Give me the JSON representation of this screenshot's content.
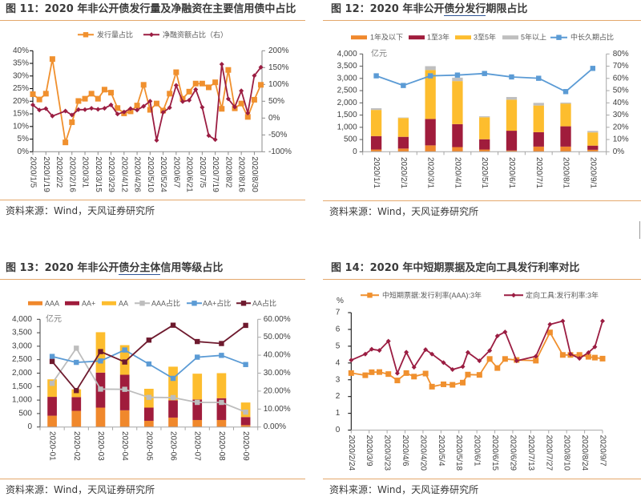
{
  "chart_data": [
    {
      "type": "line",
      "title": "图 11：2020 年非公开债发行量及净融资在主要信用债中占比",
      "title_parts": [
        "图 11：2020 年非公开债发行量及净融资在主要信用债中占比"
      ],
      "source": "资料来源：Wind，天风证券研究所",
      "legend_position": "top",
      "grid": false,
      "x": [
        "2020/1/5",
        "2020/1/12",
        "2020/1/19",
        "2020/1/26",
        "2020/2/2",
        "2020/2/9",
        "2020/2/16",
        "2020/2/23",
        "2020/3/1",
        "2020/3/8",
        "2020/3/15",
        "2020/3/22",
        "2020/3/29",
        "2020/4/5",
        "2020/4/12",
        "2020/4/19",
        "2020/4/26",
        "2020/5/3",
        "2020/5/10",
        "2020/5/17",
        "2020/5/24",
        "2020/5/31",
        "2020/6/7",
        "2020/6/14",
        "2020/6/21",
        "2020/6/28",
        "2020/7/5",
        "2020/7/12",
        "2020/7/19",
        "2020/7/26",
        "2020/8/2",
        "2020/8/9",
        "2020/8/16",
        "2020/8/23",
        "2020/8/30",
        "2020/9/6"
      ],
      "x_tick_labels": [
        "2020/1/5",
        "2020/1/19",
        "2020/2/2",
        "2020/2/16",
        "2020/3/1",
        "2020/3/15",
        "2020/3/29",
        "2020/4/12",
        "2020/4/26",
        "2020/5/10",
        "2020/5/24",
        "2020/6/7",
        "2020/6/21",
        "2020/7/5",
        "2020/7/19",
        "2020/8/2",
        "2020/8/16",
        "2020/8/30"
      ],
      "y_left": {
        "min": 0,
        "max": 40,
        "step": 5,
        "tick_labels": [
          "0%",
          "5%",
          "10%",
          "15%",
          "20%",
          "25%",
          "30%",
          "35%",
          "40%"
        ]
      },
      "y_right": {
        "min": -100,
        "max": 200,
        "step": 50,
        "tick_labels": [
          "-100%",
          "-50%",
          "0%",
          "50%",
          "100%",
          "150%",
          "200%"
        ]
      },
      "series": [
        {
          "name": "发行量占比",
          "type": "line",
          "axis": "left",
          "unit": "%",
          "color": "#F0902E",
          "marker": "square",
          "values": [
            22.8,
            20.7,
            23.0,
            36.7,
            null,
            3.7,
            11.7,
            20.1,
            21.0,
            23.0,
            21.0,
            24.6,
            23.4,
            17.3,
            15.2,
            16.0,
            18.3,
            26.5,
            16.6,
            19.1,
            16.3,
            23.0,
            31.5,
            21.0,
            23.8,
            27.0,
            27.0,
            25.5,
            27.5,
            17.0,
            32.4,
            17.2,
            19.1,
            13.8,
            20.6,
            26.5
          ]
        },
        {
          "name": "净融资额占比（右）",
          "type": "line",
          "axis": "right",
          "unit": "%",
          "color": "#9B1D42",
          "marker": "diamond",
          "values": [
            39,
            24,
            28,
            6,
            null,
            21,
            9,
            25,
            25,
            29,
            26,
            29,
            39,
            12,
            18,
            28,
            24,
            35,
            50,
            -66,
            17,
            31,
            97,
            49,
            53,
            85,
            32,
            -52,
            -64,
            160,
            57,
            33,
            81,
            15,
            126,
            151
          ]
        }
      ]
    },
    {
      "type": "bar",
      "stacked": true,
      "title": "图 12：2020 年非公开债分发行期限占比",
      "title_parts": [
        "图 12：2020 年非公开",
        "债分发行",
        "期限占比"
      ],
      "source": "资料来源：Wind，天风证券研究所",
      "legend_position": "top",
      "grid": false,
      "unit_label": "亿元",
      "categories": [
        "2020/1/1",
        "2020/2/1",
        "2020/3/1",
        "2020/4/1",
        "2020/5/1",
        "2020/6/1",
        "2020/7/1",
        "2020/8/1",
        "2020/9/1"
      ],
      "y_left": {
        "min": 0,
        "max": 4000,
        "step": 500,
        "tick_labels": [
          "0",
          "500",
          "1,000",
          "1,500",
          "2,000",
          "2,500",
          "3,000",
          "3,500",
          "4,000"
        ]
      },
      "y_right": {
        "min": 0,
        "max": 80,
        "step": 10,
        "tick_labels": [
          "0%",
          "10%",
          "20%",
          "30%",
          "40%",
          "50%",
          "60%",
          "70%",
          "80%"
        ]
      },
      "series": [
        {
          "name": "1年及以下",
          "type": "bar",
          "axis": "left",
          "color": "#F0882C",
          "values": [
            90,
            130,
            260,
            190,
            90,
            50,
            210,
            210,
            80
          ]
        },
        {
          "name": "1至3年",
          "type": "bar",
          "axis": "left",
          "color": "#A01C3C",
          "values": [
            550,
            480,
            1080,
            940,
            420,
            810,
            590,
            830,
            170
          ]
        },
        {
          "name": "3至5年",
          "type": "bar",
          "axis": "left",
          "color": "#FDBD2E",
          "values": [
            1070,
            770,
            2000,
            1760,
            900,
            1270,
            1090,
            930,
            540
          ]
        },
        {
          "name": "5年以上",
          "type": "bar",
          "axis": "left",
          "color": "#BFBFBF",
          "values": [
            70,
            20,
            160,
            140,
            40,
            110,
            110,
            40,
            60
          ]
        },
        {
          "name": "中长久期占比",
          "type": "line",
          "axis": "right",
          "unit": "%",
          "color": "#5B9BD5",
          "marker": "square",
          "values": [
            62.1,
            54.2,
            62.1,
            62.7,
            64.0,
            61.2,
            60.1,
            49.2,
            68.2
          ]
        }
      ]
    },
    {
      "type": "bar",
      "stacked": true,
      "title": "图 13：2020 年非公开债分主体信用等级占比",
      "title_parts": [
        "图 13：2020 年非公开",
        "债分主体",
        "信用等级占比"
      ],
      "source": "资料来源：Wind，天风证券研究所",
      "legend_position": "top",
      "grid": false,
      "unit_label": "亿元",
      "categories": [
        "2020-01",
        "2020-02",
        "2020-03",
        "2020-04",
        "2020-05",
        "2020-06",
        "2020-07",
        "2020-08",
        "2020-09"
      ],
      "y_left": {
        "min": 0,
        "max": 4000,
        "step": 500,
        "tick_labels": [
          "0",
          "500",
          "1,000",
          "1,500",
          "2,000",
          "2,500",
          "3,000",
          "3,500",
          "4,000"
        ]
      },
      "y_right": {
        "min": 0,
        "max": 60,
        "step": 10,
        "tick_labels": [
          "0.00%",
          "10.00%",
          "20.00%",
          "30.00%",
          "40.00%",
          "50.00%",
          "60.00%"
        ]
      },
      "series": [
        {
          "name": "AAA",
          "type": "bar",
          "axis": "left",
          "color": "#F0882C",
          "values": [
            420,
            600,
            720,
            620,
            230,
            350,
            260,
            260,
            70
          ]
        },
        {
          "name": "AA+",
          "type": "bar",
          "axis": "left",
          "color": "#A01C3C",
          "values": [
            700,
            510,
            1300,
            1320,
            490,
            640,
            760,
            810,
            300
          ]
        },
        {
          "name": "AA",
          "type": "bar",
          "axis": "left",
          "color": "#FDBD2E",
          "values": [
            650,
            290,
            1500,
            1100,
            700,
            1250,
            960,
            930,
            540
          ]
        },
        {
          "name": "AAA占比",
          "type": "line",
          "axis": "right",
          "unit": "%",
          "color": "#BDBDBD",
          "marker": "square",
          "values": [
            24.3,
            43.9,
            21.1,
            21.0,
            16.5,
            16.4,
            13.7,
            13.7,
            8.3
          ]
        },
        {
          "name": "AA+占比",
          "type": "line",
          "axis": "right",
          "unit": "%",
          "color": "#5B9BD5",
          "marker": "square",
          "values": [
            39.3,
            36.0,
            36.8,
            42.9,
            35.1,
            27.1,
            38.9,
            39.9,
            34.8
          ]
        },
        {
          "name": "AA占比",
          "type": "line",
          "axis": "right",
          "unit": "%",
          "color": "#6E1A2E",
          "marker": "square",
          "values": [
            36.5,
            20.3,
            42.0,
            36.2,
            48.4,
            56.7,
            47.6,
            46.5,
            56.6
          ]
        }
      ]
    },
    {
      "type": "line",
      "title": "图 14：2020 年中短期票据及定向工具发行利率对比",
      "title_parts": [
        "图 14：2020 年中短期票据及定向工具发行利率对比"
      ],
      "source": "资料来源：Wind，天风证券研究所",
      "legend_position": "top",
      "grid": false,
      "unit_label": "%",
      "x_range": [
        "2020/2/24",
        "2020/9/7"
      ],
      "x": [
        "2020/2/24",
        "2020/3/6",
        "2020/3/11",
        "2020/3/17",
        "2020/3/24",
        "2020/3/31",
        "2020/4/7",
        "2020/4/13",
        "2020/4/22",
        "2020/4/27",
        "2020/5/6",
        "2020/5/13",
        "2020/5/21",
        "2020/5/25",
        "2020/6/3",
        "2020/6/11",
        "2020/6/17",
        "2020/6/23",
        "2020/7/2",
        "2020/7/17",
        "2020/7/28",
        "2020/8/7",
        "2020/8/13",
        "2020/8/20",
        "2020/8/27",
        "2020/9/1",
        "2020/9/7"
      ],
      "x_tick_labels": [
        "2020/2/24",
        "2020/3/9",
        "2020/3/23",
        "2020/4/6",
        "2020/4/20",
        "2020/5/4",
        "2020/5/18",
        "2020/6/1",
        "2020/6/15",
        "2020/6/29",
        "2020/7/13",
        "2020/7/27",
        "2020/8/10",
        "2020/8/24",
        "2020/9/7"
      ],
      "y_left": {
        "min": 0,
        "max": 7,
        "step": 1,
        "tick_labels": [
          "0",
          "1",
          "2",
          "3",
          "4",
          "5",
          "6",
          "7"
        ]
      },
      "series": [
        {
          "name": "中短期票据:发行利率(AAA):3年",
          "type": "line",
          "axis": "left",
          "unit": "%",
          "color": "#F0902E",
          "marker": "square",
          "values": [
            3.4,
            3.27,
            3.45,
            3.46,
            3.34,
            2.96,
            3.4,
            3.19,
            3.37,
            2.59,
            2.73,
            2.7,
            2.83,
            3.31,
            3.29,
            4.24,
            3.7,
            4.24,
            4.18,
            4.14,
            5.82,
            4.48,
            4.48,
            4.48,
            4.37,
            4.32,
            4.26
          ]
        },
        {
          "name": "定向工具:发行利率:3年",
          "type": "line",
          "axis": "left",
          "unit": "%",
          "color": "#9B1D42",
          "marker": "diamond",
          "values": [
            4.17,
            4.53,
            4.82,
            4.75,
            5.3,
            3.39,
            4.64,
            3.75,
            4.8,
            4.53,
            4.02,
            3.61,
            3.78,
            4.63,
            4.13,
            4.74,
            5.61,
            5.85,
            4.13,
            4.4,
            6.3,
            6.5,
            4.53,
            4.27,
            4.62,
            4.96,
            6.5
          ]
        }
      ]
    }
  ]
}
